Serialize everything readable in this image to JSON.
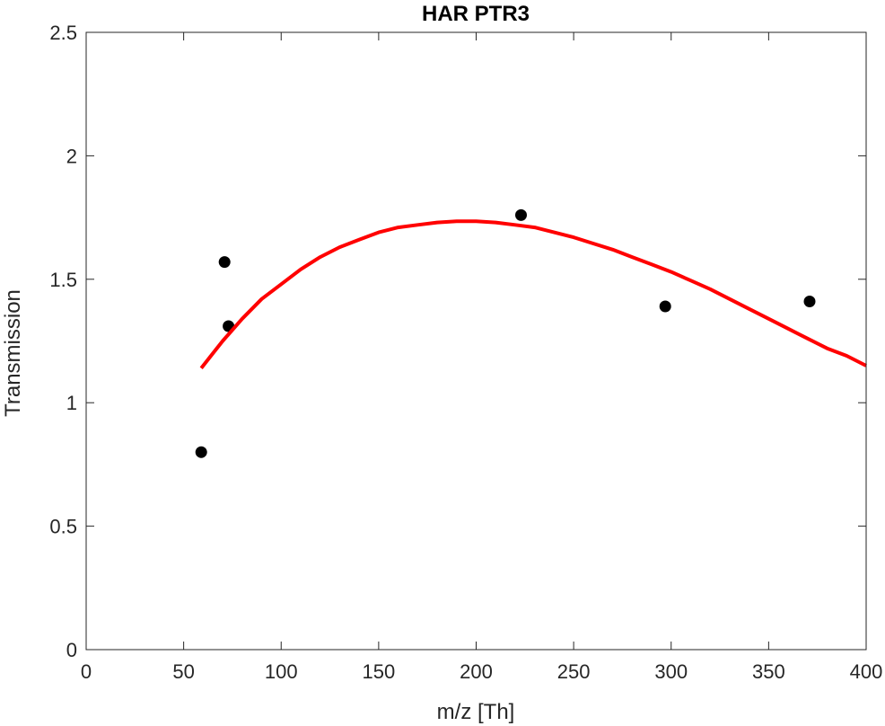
{
  "chart_data": {
    "type": "scatter",
    "title": "HAR PTR3",
    "xlabel": "m/z [Th]",
    "ylabel": "Transmission",
    "xlim": [
      0,
      400
    ],
    "ylim": [
      0,
      2.5
    ],
    "xticks": [
      "0",
      "50",
      "100",
      "150",
      "200",
      "250",
      "300",
      "350",
      "400"
    ],
    "yticks": [
      "0",
      "0.5",
      "1",
      "1.5",
      "2",
      "2.5"
    ],
    "grid": false,
    "series": [
      {
        "mode": "markers",
        "color": "#000000",
        "x": [
          59,
          71,
          73,
          223,
          297,
          371
        ],
        "y": [
          0.8,
          1.57,
          1.31,
          1.76,
          1.39,
          1.41
        ]
      },
      {
        "mode": "line",
        "color": "#ff0000",
        "x": [
          59,
          65,
          70,
          80,
          90,
          100,
          110,
          120,
          130,
          140,
          150,
          160,
          170,
          180,
          190,
          200,
          210,
          220,
          230,
          240,
          250,
          260,
          270,
          280,
          290,
          300,
          310,
          320,
          330,
          340,
          350,
          360,
          370,
          380,
          390,
          400
        ],
        "y": [
          1.14,
          1.2,
          1.25,
          1.34,
          1.42,
          1.48,
          1.54,
          1.59,
          1.63,
          1.66,
          1.69,
          1.71,
          1.72,
          1.73,
          1.735,
          1.735,
          1.73,
          1.72,
          1.71,
          1.69,
          1.67,
          1.645,
          1.62,
          1.59,
          1.56,
          1.53,
          1.495,
          1.46,
          1.42,
          1.38,
          1.34,
          1.3,
          1.26,
          1.22,
          1.19,
          1.15
        ]
      }
    ]
  }
}
